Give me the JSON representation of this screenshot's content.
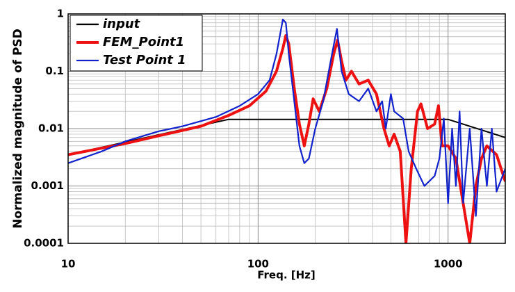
{
  "chart_data": {
    "type": "line",
    "x_label": "Freq. [Hz]",
    "y_label": "Normalized magnitude of PSD",
    "xscale": "log",
    "yscale": "log",
    "grid": true,
    "minor_grid": true,
    "legend": "upper left",
    "xlim": [
      10,
      2000
    ],
    "ylim": [
      0.0001,
      1
    ],
    "xticks": [
      10,
      100,
      1000
    ],
    "yticks": [
      0.0001,
      0.001,
      0.01,
      0.1,
      1
    ],
    "series": [
      {
        "name": "input",
        "color": "#000000",
        "x": [
          10,
          70,
          1000,
          2000
        ],
        "values": [
          0.0035,
          0.0145,
          0.0145,
          0.007
        ]
      },
      {
        "name": "FEM_Point1",
        "color": "#ee1111",
        "x": [
          10,
          20,
          30,
          50,
          70,
          90,
          110,
          125,
          135,
          140,
          145,
          155,
          165,
          175,
          185,
          195,
          210,
          230,
          250,
          262,
          275,
          290,
          310,
          340,
          380,
          420,
          460,
          490,
          520,
          560,
          600,
          640,
          690,
          720,
          780,
          850,
          890,
          930,
          1000,
          1100,
          1200,
          1300,
          1400,
          1500,
          1600,
          1800,
          2000
        ],
        "values": [
          0.0035,
          0.0055,
          0.0075,
          0.011,
          0.017,
          0.025,
          0.045,
          0.1,
          0.25,
          0.42,
          0.3,
          0.05,
          0.012,
          0.005,
          0.012,
          0.033,
          0.02,
          0.05,
          0.2,
          0.35,
          0.15,
          0.07,
          0.1,
          0.06,
          0.07,
          0.04,
          0.01,
          0.005,
          0.008,
          0.004,
          0.0001,
          0.002,
          0.02,
          0.027,
          0.01,
          0.012,
          0.025,
          0.005,
          0.005,
          0.003,
          0.0005,
          0.0001,
          0.001,
          0.003,
          0.005,
          0.0035,
          0.0012
        ]
      },
      {
        "name": "Test Point 1",
        "color": "#1122cc",
        "x": [
          10,
          15,
          20,
          30,
          40,
          60,
          80,
          100,
          115,
          125,
          135,
          140,
          145,
          155,
          165,
          175,
          185,
          200,
          220,
          245,
          260,
          275,
          300,
          340,
          380,
          420,
          450,
          470,
          500,
          520,
          580,
          620,
          680,
          750,
          850,
          900,
          950,
          1000,
          1050,
          1100,
          1150,
          1200,
          1300,
          1400,
          1500,
          1600,
          1700,
          1800,
          2000
        ],
        "values": [
          0.0025,
          0.004,
          0.006,
          0.009,
          0.011,
          0.016,
          0.025,
          0.04,
          0.07,
          0.2,
          0.8,
          0.7,
          0.2,
          0.03,
          0.005,
          0.0025,
          0.003,
          0.01,
          0.03,
          0.2,
          0.55,
          0.1,
          0.04,
          0.03,
          0.05,
          0.02,
          0.03,
          0.01,
          0.04,
          0.02,
          0.015,
          0.004,
          0.002,
          0.001,
          0.0015,
          0.003,
          0.015,
          0.0005,
          0.01,
          0.001,
          0.02,
          0.0005,
          0.01,
          0.0003,
          0.01,
          0.001,
          0.01,
          0.0008,
          0.002
        ]
      }
    ]
  }
}
